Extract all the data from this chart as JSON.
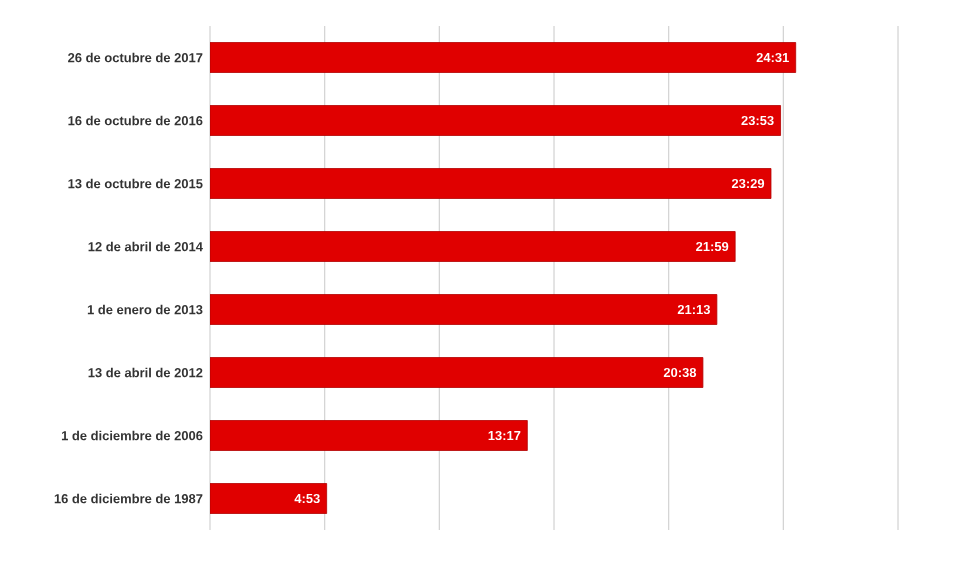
{
  "chart_data": {
    "type": "bar",
    "orientation": "horizontal",
    "categories": [
      "26 de octubre de 2017",
      "16 de octubre de 2016",
      "13 de octubre de 2015",
      "12 de abril de 2014",
      "1 de enero de 2013",
      "13 de abril de 2012",
      "1 de diciembre de 2006",
      "16 de diciembre de 1987"
    ],
    "values": [
      24.517,
      23.883,
      23.483,
      21.983,
      21.217,
      20.633,
      13.283,
      4.883
    ],
    "value_labels": [
      "24:31",
      "23:53",
      "23:29",
      "21:59",
      "21:13",
      "20:38",
      "13:17",
      "4:53"
    ],
    "color": "#e00000",
    "xlim": [
      0,
      28.8
    ],
    "xticks": [
      {
        "value": 0,
        "label": null
      },
      {
        "value": 4.8,
        "label": null
      },
      {
        "value": 9.6,
        "label": null
      },
      {
        "value": 14.4,
        "label": null
      },
      {
        "value": 19.2,
        "label": null
      },
      {
        "value": 24,
        "label": null
      },
      {
        "value": 28.8,
        "label": null
      }
    ],
    "grid": "x",
    "tick_labels": "y"
  }
}
